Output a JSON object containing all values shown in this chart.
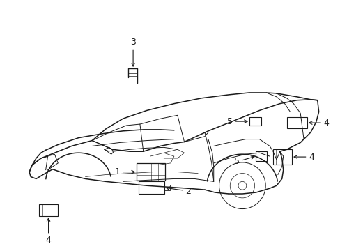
{
  "bg_color": "#ffffff",
  "line_color": "#1a1a1a",
  "fig_width": 4.89,
  "fig_height": 3.6,
  "dpi": 100,
  "lw_main": 1.1,
  "lw_thin": 0.7,
  "lw_detail": 0.5
}
